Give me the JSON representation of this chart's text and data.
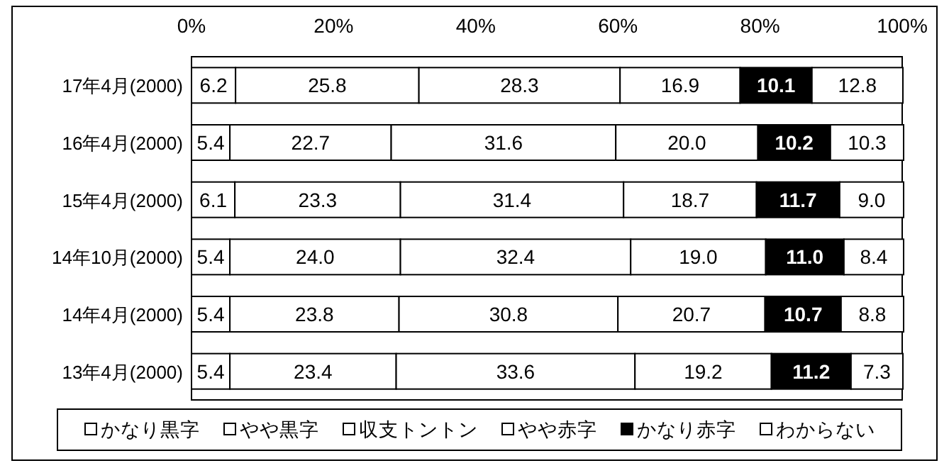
{
  "chart_data": {
    "type": "bar",
    "orientation": "horizontal",
    "stacked": true,
    "data_labels": false,
    "legend": "bottom",
    "categories": [
      "17年4月(2000)",
      "16年4月(2000)",
      "15年4月(2000)",
      "14年10月(2000)",
      "14年4月(2000)",
      "13年4月(2000)"
    ],
    "xlim": [
      0,
      100
    ],
    "xticks": [
      {
        "value": 0,
        "label": "0%"
      },
      {
        "value": 20,
        "label": "20%"
      },
      {
        "value": 40,
        "label": "40%"
      },
      {
        "value": 60,
        "label": "60%"
      },
      {
        "value": 80,
        "label": "80%"
      },
      {
        "value": 100,
        "label": "100%"
      }
    ],
    "series": [
      {
        "name": "かなり黒字",
        "color": "#ffffff",
        "values": [
          6.2,
          5.4,
          6.1,
          5.4,
          5.4,
          5.4
        ],
        "value_labels": [
          "6.2",
          "5.4",
          "6.1",
          "5.4",
          "5.4",
          "5.4"
        ]
      },
      {
        "name": "やや黒字",
        "color": "#ffffff",
        "values": [
          25.8,
          22.7,
          23.3,
          24.0,
          23.8,
          23.4
        ],
        "value_labels": [
          "25.8",
          "22.7",
          "23.3",
          "24.0",
          "23.8",
          "23.4"
        ]
      },
      {
        "name": "収支トントン",
        "color": "#ffffff",
        "values": [
          28.3,
          31.6,
          31.4,
          32.4,
          30.8,
          33.6
        ],
        "value_labels": [
          "28.3",
          "31.6",
          "31.4",
          "32.4",
          "30.8",
          "33.6"
        ]
      },
      {
        "name": "やや赤字",
        "color": "#ffffff",
        "values": [
          16.9,
          20.0,
          18.7,
          19.0,
          20.7,
          19.2
        ],
        "value_labels": [
          "16.9",
          "20.0",
          "18.7",
          "19.0",
          "20.7",
          "19.2"
        ]
      },
      {
        "name": "かなり赤字",
        "color": "#000000",
        "values": [
          10.1,
          10.2,
          11.7,
          11.0,
          10.7,
          11.2
        ],
        "value_labels": [
          "10.1",
          "10.2",
          "11.7",
          "11.0",
          "10.7",
          "11.2"
        ]
      },
      {
        "name": "わからない",
        "color": "#ffffff",
        "values": [
          12.8,
          10.3,
          9.0,
          8.4,
          8.8,
          7.3
        ],
        "value_labels": [
          "12.8",
          "10.3",
          "9.0",
          "8.4",
          "8.8",
          "7.3"
        ]
      }
    ]
  }
}
